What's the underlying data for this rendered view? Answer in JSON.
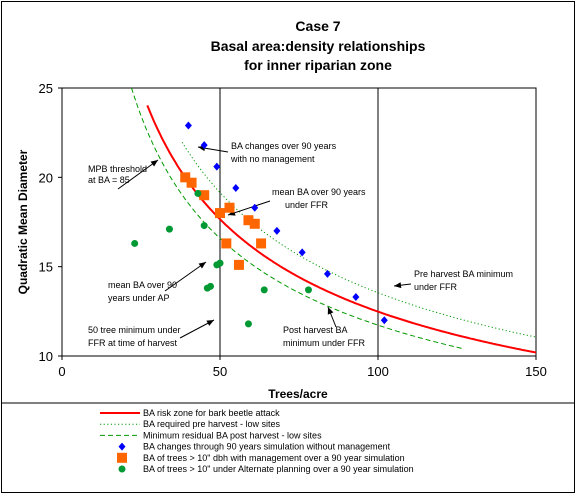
{
  "chart_data": {
    "type": "scatter",
    "title": [
      "Case 7",
      "Basal area:density relationships",
      "for inner riparian zone"
    ],
    "xlabel": "Trees/acre",
    "ylabel": "Quadratic Mean Diameter",
    "xlim": [
      0,
      150
    ],
    "ylim": [
      10,
      25
    ],
    "xticks": [
      "0",
      "50",
      "100",
      "150"
    ],
    "yticks": [
      "10",
      "15",
      "20",
      "25"
    ],
    "vlines": [
      50,
      100
    ],
    "curves": [
      {
        "name": "BA risk zone for bark beetle attack",
        "ba": 85,
        "x": [
          27,
          152
        ],
        "color": "#ff0000",
        "dash": "solid"
      },
      {
        "name": "BA required pre harvest - low sites",
        "ba": 100,
        "x": [
          38,
          152
        ],
        "color": "#009900",
        "dash": "dotted"
      },
      {
        "name": "Minimum residual BA post harvest - low sites",
        "ba": 75,
        "x": [
          22,
          127
        ],
        "color": "#009900",
        "dash": "dashed"
      }
    ],
    "series": [
      {
        "name": "BA changes through 90 years simulation without management",
        "marker": "diamond",
        "color": "#0000ff",
        "points": [
          [
            40,
            22.9
          ],
          [
            45,
            21.8
          ],
          [
            49,
            20.6
          ],
          [
            55,
            19.4
          ],
          [
            61,
            18.3
          ],
          [
            68,
            17.0
          ],
          [
            76,
            15.8
          ],
          [
            84,
            14.6
          ],
          [
            93,
            13.3
          ],
          [
            102,
            12.0
          ]
        ]
      },
      {
        "name": "BA of trees > 10\" dbh with management over a 90 year simulation",
        "marker": "square",
        "color": "#ff6600",
        "points": [
          [
            39,
            20.0
          ],
          [
            41,
            19.7
          ],
          [
            45,
            19.0
          ],
          [
            50,
            18.0
          ],
          [
            53,
            18.3
          ],
          [
            52,
            16.3
          ],
          [
            56,
            15.1
          ],
          [
            59,
            17.6
          ],
          [
            61,
            17.4
          ],
          [
            63,
            16.3
          ]
        ]
      },
      {
        "name": "BA of trees > 10\" under Alternate planning over a 90 year simulation",
        "marker": "circle",
        "color": "#009933",
        "points": [
          [
            23,
            16.3
          ],
          [
            34,
            17.1
          ],
          [
            43,
            19.1
          ],
          [
            45,
            17.3
          ],
          [
            49,
            15.1
          ],
          [
            50,
            15.2
          ],
          [
            46,
            13.8
          ],
          [
            47,
            13.9
          ],
          [
            59,
            11.8
          ],
          [
            64,
            13.7
          ],
          [
            78,
            13.7
          ]
        ]
      }
    ],
    "annotations": [
      {
        "lines": [
          "MPB threshold",
          "at BA = 85"
        ]
      },
      {
        "lines": [
          "BA changes over 90 years",
          "with no management"
        ]
      },
      {
        "lines": [
          "mean BA over 90 years",
          "under  FFR"
        ]
      },
      {
        "lines": [
          "mean BA over 90",
          "years under AP"
        ]
      },
      {
        "lines": [
          "50 tree minimum under",
          "FFR at time of harvest"
        ]
      },
      {
        "lines": [
          "Post harvest BA",
          "minimum under FFR"
        ]
      },
      {
        "lines": [
          "Pre harvest BA minimum",
          "under FFR"
        ]
      }
    ],
    "legend": {
      "placement": "bottom"
    }
  }
}
